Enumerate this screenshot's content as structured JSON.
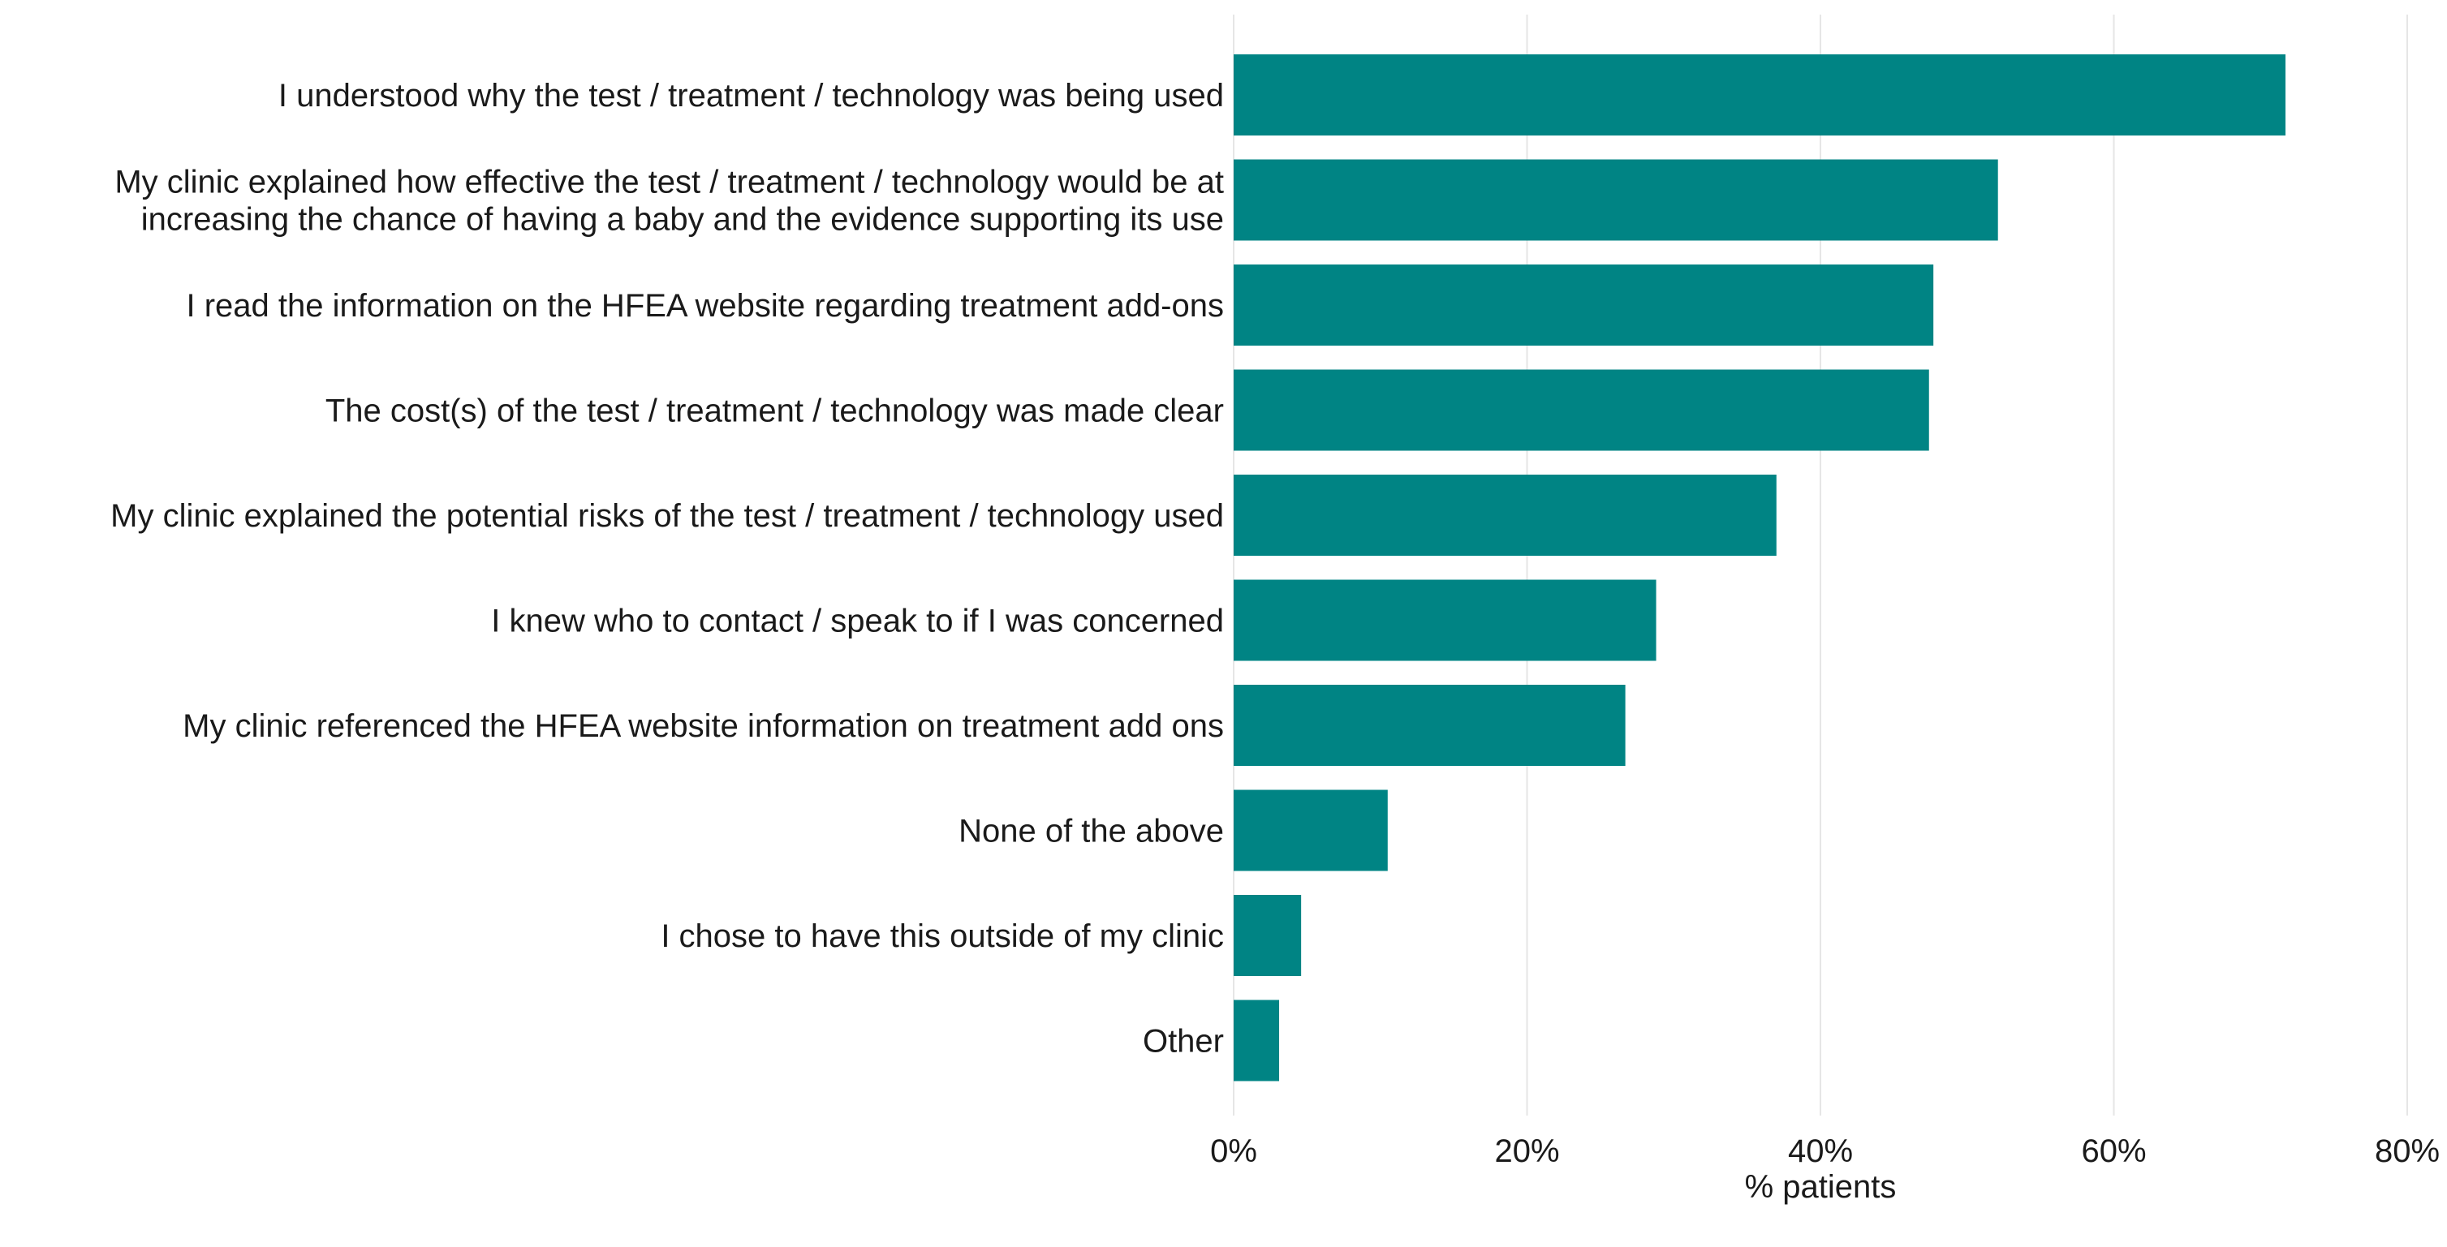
{
  "chart_data": {
    "type": "bar",
    "orientation": "horizontal",
    "categories": [
      "I understood why the test / treatment / technology was being used",
      "My clinic explained how effective the test / treatment / technology would be at increasing the chance of having a baby and the evidence supporting its use",
      "I read the information on the HFEA website regarding treatment add-ons",
      "The cost(s) of the test / treatment / technology was made clear",
      "My clinic explained the potential risks of the test / treatment / technology used",
      "I knew who to contact / speak to if I was concerned",
      "My clinic referenced the HFEA website information on treatment add ons",
      "None of the above",
      "I chose to have this outside of my clinic",
      "Other"
    ],
    "category_lines": [
      [
        "I understood why the test / treatment / technology was being used"
      ],
      [
        "My clinic explained how effective the test / treatment / technology would be at",
        "increasing the chance of having a baby and the evidence supporting its use"
      ],
      [
        "I read the information on the HFEA website regarding treatment add-ons"
      ],
      [
        "The cost(s) of the test / treatment / technology was made clear"
      ],
      [
        "My clinic explained the potential risks of the test / treatment / technology used"
      ],
      [
        "I knew who to contact / speak to if I was concerned"
      ],
      [
        "My clinic referenced the HFEA website information on treatment add ons"
      ],
      [
        "None of the above"
      ],
      [
        "I chose to have this outside of my clinic"
      ],
      [
        "Other"
      ]
    ],
    "values": [
      71.7,
      52.1,
      47.7,
      47.4,
      37.0,
      28.8,
      26.7,
      10.5,
      4.6,
      3.1
    ],
    "unit": "%",
    "xlabel": "% patients",
    "ylabel": "",
    "title": "",
    "xlim": [
      0,
      80
    ],
    "xticks": [
      0,
      20,
      40,
      60,
      80
    ],
    "xtick_labels": [
      "0%",
      "20%",
      "40%",
      "60%",
      "80%"
    ],
    "grid": "vertical",
    "legend": "none",
    "bar_color": "#008484",
    "gridline_color": "#e6e6e6"
  }
}
